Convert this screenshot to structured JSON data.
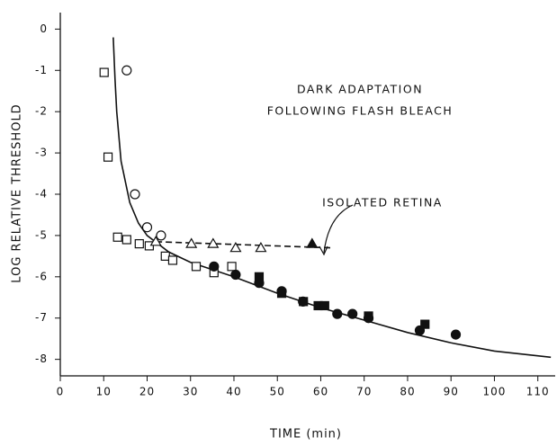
{
  "chart_data": {
    "type": "scatter",
    "annotations": [
      "DARK ADAPTATION",
      "FOLLOWING FLASH BLEACH",
      "ISOLATED RETINA"
    ],
    "xlabel": "TIME (min)",
    "ylabel": "LOG RELATIVE THRESHOLD",
    "xlim": [
      0,
      114
    ],
    "ylim": [
      -8.4,
      0.4
    ],
    "xticks": [
      0,
      10,
      20,
      30,
      40,
      50,
      60,
      70,
      80,
      90,
      100,
      110
    ],
    "yticks": [
      0,
      -1,
      -2,
      -3,
      -4,
      -5,
      -6,
      -7,
      -8
    ],
    "series": [
      {
        "marker": "square-open",
        "color": "#111",
        "x": [
          10.1,
          11,
          13.2,
          15.3,
          18.2,
          20.5,
          24.2,
          25.9,
          31.3,
          35.4,
          39.5
        ],
        "values": [
          -1.05,
          -3.1,
          -5.04,
          -5.1,
          -5.2,
          -5.25,
          -5.5,
          -5.6,
          -5.75,
          -5.9,
          -5.75
        ]
      },
      {
        "marker": "circle-open",
        "color": "#111",
        "x": [
          15.3,
          17.2,
          20,
          23.2
        ],
        "values": [
          -1.0,
          -4.0,
          -4.8,
          -5.0
        ]
      },
      {
        "marker": "triangle-open",
        "color": "#111",
        "x": [
          22,
          30.2,
          35.2,
          40.4,
          46.2
        ],
        "values": [
          -5.15,
          -5.2,
          -5.2,
          -5.3,
          -5.3
        ]
      },
      {
        "marker": "triangle-filled",
        "color": "#111",
        "x": [
          58
        ],
        "values": [
          -5.2
        ]
      },
      {
        "marker": "circle-filled",
        "color": "#111",
        "x": [
          35.4,
          40.4,
          45.8,
          51,
          55.9,
          63.8,
          67.3,
          71,
          82.8,
          91.1
        ],
        "values": [
          -5.75,
          -5.95,
          -6.15,
          -6.35,
          -6.6,
          -6.9,
          -6.9,
          -7.0,
          -7.3,
          -7.4
        ]
      },
      {
        "marker": "square-filled",
        "color": "#111",
        "x": [
          45.8,
          51,
          56,
          59.4,
          60.9,
          71,
          84
        ],
        "values": [
          -6.0,
          -6.4,
          -6.6,
          -6.7,
          -6.7,
          -6.95,
          -7.15
        ]
      }
    ],
    "lines": [
      {
        "style": "solid",
        "color": "#111",
        "x": [
          12.2,
          12.6,
          13,
          14,
          16,
          18,
          20,
          25,
          30,
          40,
          50,
          60,
          70,
          80,
          90,
          100,
          113
        ],
        "values": [
          -0.2,
          -1.2,
          -2,
          -3.2,
          -4.2,
          -4.7,
          -5,
          -5.4,
          -5.65,
          -6,
          -6.4,
          -6.75,
          -7.05,
          -7.35,
          -7.6,
          -7.8,
          -7.95
        ]
      },
      {
        "style": "dashed",
        "color": "#111",
        "x": [
          22,
          63
        ],
        "values": [
          -5.15,
          -5.3
        ]
      }
    ]
  }
}
